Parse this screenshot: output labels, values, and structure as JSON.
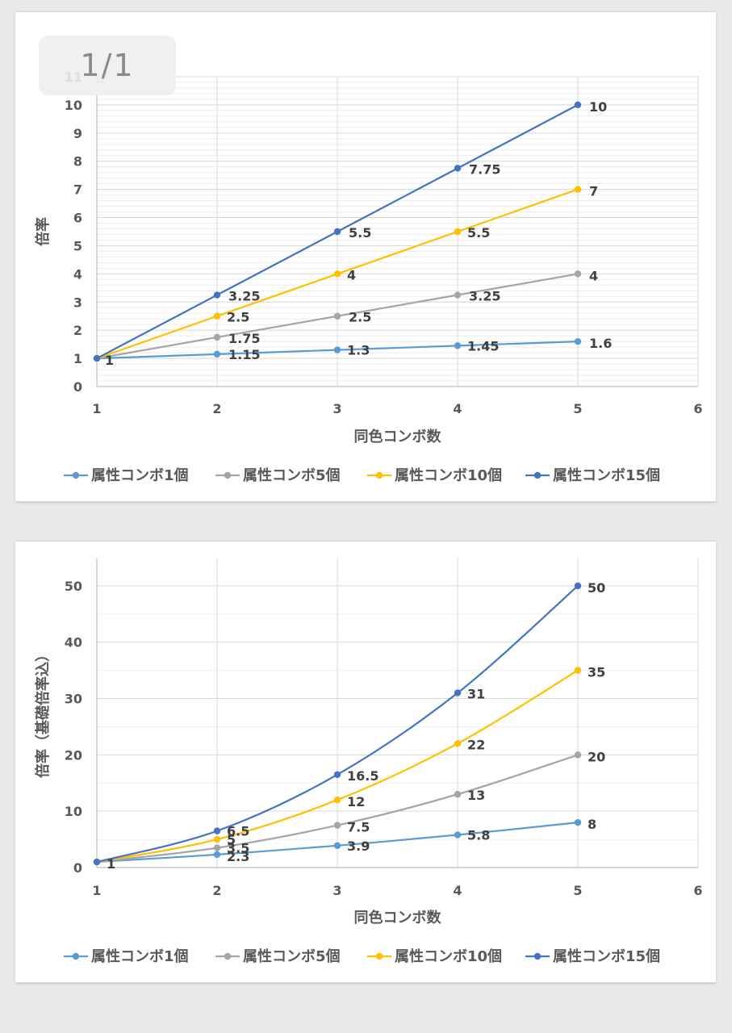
{
  "page_indicator": "1/1",
  "chart_data": [
    {
      "type": "line",
      "xlabel": "同色コンボ数",
      "ylabel": "倍率",
      "xlim": [
        1,
        6
      ],
      "ylim": [
        0,
        11
      ],
      "xticks": [
        "1",
        "2",
        "3",
        "4",
        "5",
        "6"
      ],
      "yticks": [
        "0",
        "1",
        "2",
        "3",
        "4",
        "5",
        "6",
        "7",
        "8",
        "9",
        "10",
        "11"
      ],
      "grid": "on",
      "legend_position": "bottom",
      "x": [
        1,
        2,
        3,
        4,
        5
      ],
      "series": [
        {
          "name": "属性コンボ1個",
          "color": "#5b9bd5",
          "values": [
            1,
            1.15,
            1.3,
            1.45,
            1.6
          ],
          "labels": [
            "1",
            "1.15",
            "1.3",
            "1.45",
            "1.6"
          ]
        },
        {
          "name": "属性コンボ5個",
          "color": "#a5a5a5",
          "values": [
            1,
            1.75,
            2.5,
            3.25,
            4
          ],
          "labels": [
            "",
            "1.75",
            "2.5",
            "3.25",
            "4"
          ]
        },
        {
          "name": "属性コンボ10個",
          "color": "#ffc000",
          "values": [
            1,
            2.5,
            4,
            5.5,
            7
          ],
          "labels": [
            "",
            "2.5",
            "4",
            "5.5",
            "7"
          ]
        },
        {
          "name": "属性コンボ15個",
          "color": "#4472c4",
          "values": [
            1,
            3.25,
            5.5,
            7.75,
            10
          ],
          "labels": [
            "",
            "3.25",
            "5.5",
            "7.75",
            "10"
          ]
        }
      ]
    },
    {
      "type": "line",
      "xlabel": "同色コンボ数",
      "ylabel": "倍率（基礎倍率込）",
      "xlim": [
        1,
        6
      ],
      "ylim": [
        0,
        55
      ],
      "xticks": [
        "1",
        "2",
        "3",
        "4",
        "5",
        "6"
      ],
      "yticks": [
        "0",
        "10",
        "20",
        "30",
        "40",
        "50"
      ],
      "grid": "on",
      "legend_position": "bottom",
      "x": [
        1,
        2,
        3,
        4,
        5
      ],
      "series": [
        {
          "name": "属性コンボ1個",
          "color": "#5b9bd5",
          "values": [
            1,
            2.3,
            3.9,
            5.8,
            8
          ],
          "labels": [
            "1",
            "2.3",
            "3.9",
            "5.8",
            "8"
          ]
        },
        {
          "name": "属性コンボ5個",
          "color": "#a5a5a5",
          "values": [
            1,
            3.5,
            7.5,
            13,
            20
          ],
          "labels": [
            "",
            "3.5",
            "7.5",
            "13",
            "20"
          ]
        },
        {
          "name": "属性コンボ10個",
          "color": "#ffc000",
          "values": [
            1,
            5,
            12,
            22,
            35
          ],
          "labels": [
            "",
            "5",
            "12",
            "22",
            "35"
          ]
        },
        {
          "name": "属性コンボ15個",
          "color": "#4472c4",
          "values": [
            1,
            6.5,
            16.5,
            31,
            50
          ],
          "labels": [
            "",
            "6.5",
            "16.5",
            "31",
            "50"
          ]
        }
      ]
    }
  ]
}
